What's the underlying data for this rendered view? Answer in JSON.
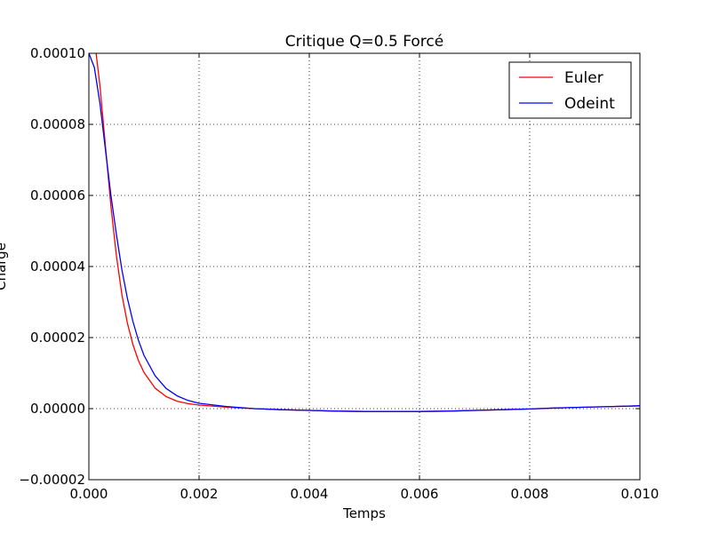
{
  "chart_data": {
    "type": "line",
    "title": "Critique Q=0.5 Forcé",
    "xlabel": "Temps",
    "ylabel": "Charge",
    "xlim": [
      0.0,
      0.01
    ],
    "ylim": [
      -2e-05,
      0.0001
    ],
    "grid": true,
    "legend_position": "top-right",
    "x_ticks": [
      "0.000",
      "0.002",
      "0.004",
      "0.006",
      "0.008",
      "0.010"
    ],
    "y_ticks": [
      "−0.00002",
      "0.00000",
      "0.00002",
      "0.00004",
      "0.00006",
      "0.00008",
      "0.00010"
    ],
    "series": [
      {
        "name": "Euler",
        "color": "#ff0000",
        "x": [
          0.0,
          0.0001,
          0.0002,
          0.0003,
          0.0004,
          0.0005,
          0.0006,
          0.0007,
          0.0008,
          0.0009,
          0.001,
          0.0012,
          0.0014,
          0.0016,
          0.0018,
          0.002,
          0.0025,
          0.003,
          0.0035,
          0.004,
          0.0045,
          0.005,
          0.0055,
          0.006,
          0.0065,
          0.007,
          0.0075,
          0.008,
          0.0085,
          0.009,
          0.0095,
          0.01
        ],
        "y": [
          0.000112,
          0.000104,
          9.1e-05,
          7.4e-05,
          5.7e-05,
          4.3e-05,
          3.2e-05,
          2.4e-05,
          1.8e-05,
          1.35e-05,
          1.02e-05,
          5.8e-06,
          3.4e-06,
          2.1e-06,
          1.4e-06,
          1e-06,
          4e-07,
          0.0,
          -3e-07,
          -5e-07,
          -7e-07,
          -8e-07,
          -8e-07,
          -8e-07,
          -7e-07,
          -5e-07,
          -3e-07,
          -1e-07,
          2e-07,
          4e-07,
          6e-07,
          8e-07
        ]
      },
      {
        "name": "Odeint",
        "color": "#0000ff",
        "x": [
          0.0,
          0.0001,
          0.0002,
          0.0003,
          0.0004,
          0.0005,
          0.0006,
          0.0007,
          0.0008,
          0.0009,
          0.001,
          0.0012,
          0.0014,
          0.0016,
          0.0018,
          0.002,
          0.0025,
          0.003,
          0.0035,
          0.004,
          0.0045,
          0.005,
          0.0055,
          0.006,
          0.0065,
          0.007,
          0.0075,
          0.008,
          0.0085,
          0.009,
          0.0095,
          0.01
        ],
        "y": [
          0.0001,
          9.6e-05,
          8.6e-05,
          7.3e-05,
          6e-05,
          4.9e-05,
          3.9e-05,
          3.1e-05,
          2.45e-05,
          1.92e-05,
          1.5e-05,
          9.3e-06,
          5.7e-06,
          3.6e-06,
          2.3e-06,
          1.5e-06,
          6e-07,
          0.0,
          -3e-07,
          -5e-07,
          -7e-07,
          -8e-07,
          -8e-07,
          -8e-07,
          -7e-07,
          -5e-07,
          -3e-07,
          -1e-07,
          2e-07,
          4e-07,
          6e-07,
          8e-07
        ]
      }
    ]
  }
}
